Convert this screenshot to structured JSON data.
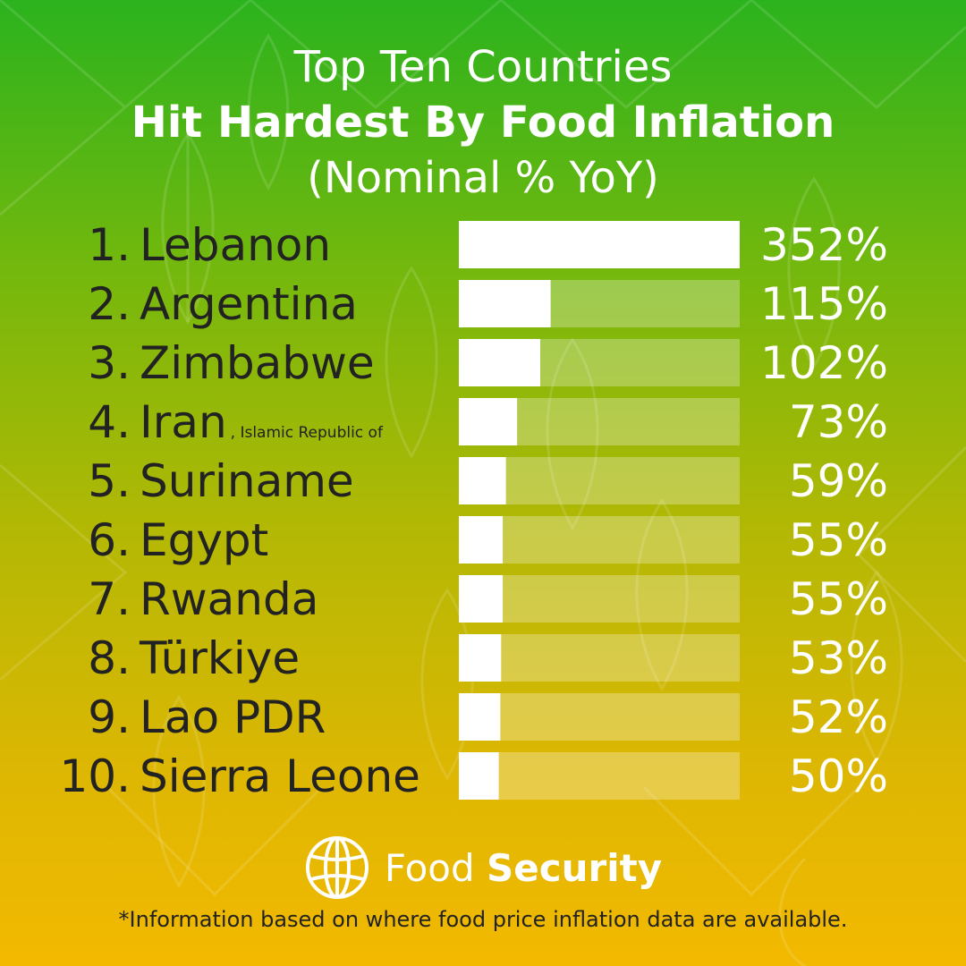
{
  "header": {
    "line1": "Top Ten Countries",
    "line2": "Hit Hardest By Food Inflation",
    "line3": "(Nominal % YoY)"
  },
  "chart_data": {
    "type": "bar",
    "orientation": "horizontal",
    "title": "Top Ten Countries Hit Hardest By Food Inflation (Nominal % YoY)",
    "categories": [
      "Lebanon",
      "Argentina",
      "Zimbabwe",
      "Iran",
      "Suriname",
      "Egypt",
      "Rwanda",
      "Türkiye",
      "Lao PDR",
      "Sierra Leone"
    ],
    "ranks": [
      "1.",
      "2.",
      "3.",
      "4.",
      "5.",
      "6.",
      "7.",
      "8.",
      "9.",
      "10."
    ],
    "notes": [
      "",
      "",
      "",
      ", Islamic Republic of",
      "",
      "",
      "",
      "",
      "",
      ""
    ],
    "values": [
      352,
      115,
      102,
      73,
      59,
      55,
      55,
      53,
      52,
      50
    ],
    "value_labels": [
      "352%",
      "115%",
      "102%",
      "73%",
      "59%",
      "55%",
      "55%",
      "53%",
      "52%",
      "50%"
    ],
    "xlim": [
      0,
      352
    ],
    "grid": false,
    "bar_color": "#ffffff"
  },
  "brand": {
    "name_regular": "Food",
    "name_bold": "Security",
    "icon": "globe-icon"
  },
  "footnote": "*Information based on where food price inflation data are available."
}
